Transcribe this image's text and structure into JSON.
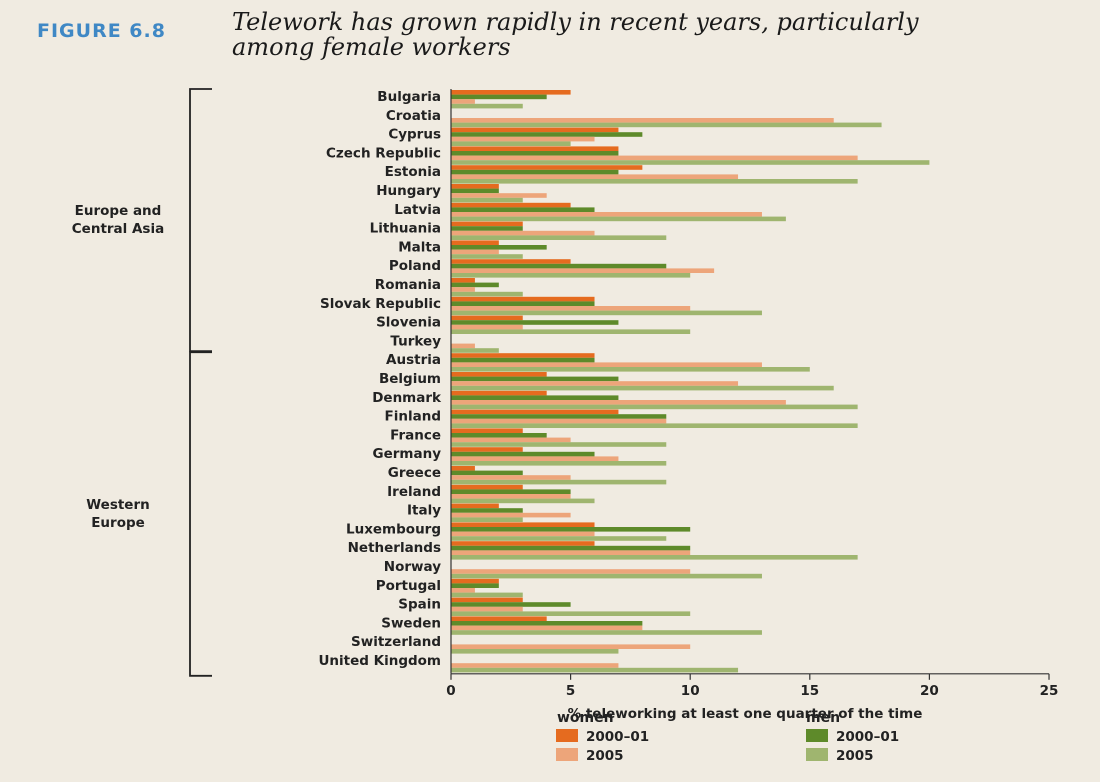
{
  "figure": {
    "number": "FIGURE 6.8",
    "title": "Telework has grown rapidly in recent years, particularly among female workers"
  },
  "chart_data": {
    "type": "bar",
    "orientation": "horizontal",
    "xlabel": "% teleworking at least one quarter of the time",
    "xlim": [
      0,
      25
    ],
    "xticks": [
      "0",
      "5",
      "10",
      "15",
      "20",
      "25"
    ],
    "groups": [
      {
        "label": "Europe and Central Asia",
        "label_lines": [
          "Europe and",
          "Central Asia"
        ],
        "from": 0,
        "to": 13
      },
      {
        "label": "Western Europe",
        "label_lines": [
          "Western",
          "Europe"
        ],
        "from": 14,
        "to": 30
      }
    ],
    "categories": [
      "Bulgaria",
      "Croatia",
      "Cyprus",
      "Czech Republic",
      "Estonia",
      "Hungary",
      "Latvia",
      "Lithuania",
      "Malta",
      "Poland",
      "Romania",
      "Slovak Republic",
      "Slovenia",
      "Turkey",
      "Austria",
      "Belgium",
      "Denmark",
      "Finland",
      "France",
      "Germany",
      "Greece",
      "Ireland",
      "Italy",
      "Luxembourg",
      "Netherlands",
      "Norway",
      "Portugal",
      "Spain",
      "Sweden",
      "Switzerland",
      "United Kingdom"
    ],
    "series": [
      {
        "name": "women 2000–01",
        "color": "#e56b1f",
        "values": [
          5,
          0,
          7,
          7,
          8,
          2,
          5,
          3,
          2,
          5,
          1,
          6,
          3,
          0,
          6,
          4,
          4,
          7,
          3,
          3,
          1,
          3,
          2,
          6,
          6,
          0,
          2,
          3,
          4,
          0,
          0
        ]
      },
      {
        "name": "men 2000–01",
        "color": "#5e8a2a",
        "values": [
          4,
          0,
          8,
          7,
          7,
          2,
          6,
          3,
          4,
          9,
          2,
          6,
          7,
          0,
          6,
          7,
          7,
          9,
          4,
          6,
          3,
          5,
          3,
          10,
          10,
          0,
          2,
          5,
          8,
          0,
          0
        ]
      },
      {
        "name": "women 2005",
        "color": "#eda57a",
        "values": [
          1,
          16,
          6,
          17,
          12,
          4,
          13,
          6,
          2,
          11,
          1,
          10,
          3,
          1,
          13,
          12,
          14,
          9,
          5,
          7,
          5,
          5,
          5,
          6,
          10,
          10,
          1,
          3,
          8,
          10,
          7
        ]
      },
      {
        "name": "men 2005",
        "color": "#9fb56f",
        "values": [
          3,
          18,
          5,
          20,
          17,
          3,
          14,
          9,
          3,
          10,
          3,
          13,
          10,
          2,
          15,
          16,
          17,
          17,
          9,
          9,
          9,
          6,
          3,
          9,
          17,
          13,
          3,
          10,
          13,
          7,
          12
        ]
      }
    ],
    "legend": {
      "position": "bottom",
      "women_title": "women",
      "men_title": "men",
      "women_items": [
        "2000–01",
        "2005"
      ],
      "men_items": [
        "2000–01",
        "2005"
      ]
    }
  }
}
